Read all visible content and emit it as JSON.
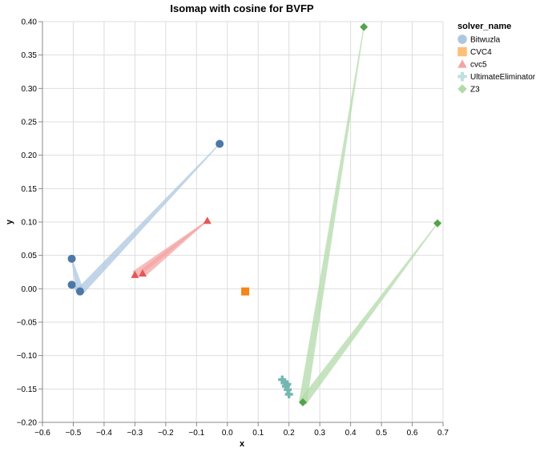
{
  "chart_data": {
    "type": "scatter",
    "title": "Isomap with cosine for BVFP",
    "xlabel": "x",
    "ylabel": "y",
    "xlim": [
      -0.6,
      0.7
    ],
    "ylim": [
      -0.2,
      0.4
    ],
    "x_ticks": [
      "−0.6",
      "−0.5",
      "−0.4",
      "−0.3",
      "−0.2",
      "−0.1",
      "0.0",
      "0.1",
      "0.2",
      "0.3",
      "0.4",
      "0.5",
      "0.6",
      "0.7"
    ],
    "y_ticks": [
      "−0.20",
      "−0.15",
      "−0.10",
      "−0.05",
      "0.00",
      "0.05",
      "0.10",
      "0.15",
      "0.20",
      "0.25",
      "0.30",
      "0.35",
      "0.40"
    ],
    "grid": true,
    "legend": {
      "title": "solver_name",
      "position": "right"
    },
    "series": [
      {
        "name": "Bitwuzla",
        "shape": "circle",
        "color": "#4c78a8",
        "line_color": "#aec7e0",
        "points": [
          [
            -0.025,
            0.217
          ],
          [
            -0.505,
            0.045
          ],
          [
            -0.505,
            0.006
          ],
          [
            -0.478,
            -0.004
          ]
        ],
        "lines": [
          [
            [
              -0.025,
              0.217
            ],
            [
              -0.478,
              -0.004
            ]
          ],
          [
            [
              -0.505,
              0.045
            ],
            [
              -0.478,
              -0.004
            ]
          ],
          [
            [
              -0.505,
              0.006
            ],
            [
              -0.478,
              -0.004
            ]
          ]
        ]
      },
      {
        "name": "CVC4",
        "shape": "square",
        "color": "#f58518",
        "line_color": "#ffbf79",
        "points": [
          [
            0.058,
            -0.004
          ]
        ],
        "lines": []
      },
      {
        "name": "cvc5",
        "shape": "triangle",
        "color": "#e45756",
        "line_color": "#f4a4a4",
        "points": [
          [
            -0.065,
            0.102
          ],
          [
            -0.3,
            0.021
          ],
          [
            -0.275,
            0.023
          ]
        ],
        "lines": [
          [
            [
              -0.065,
              0.102
            ],
            [
              -0.3,
              0.021
            ]
          ],
          [
            [
              -0.065,
              0.102
            ],
            [
              -0.275,
              0.023
            ]
          ]
        ]
      },
      {
        "name": "UltimateEliminator",
        "shape": "cross",
        "color": "#72b7b2",
        "line_color": "#bfe0dd",
        "points": [
          [
            0.178,
            -0.136
          ],
          [
            0.186,
            -0.141
          ],
          [
            0.19,
            -0.146
          ],
          [
            0.196,
            -0.151
          ],
          [
            0.2,
            -0.158
          ],
          [
            0.194,
            -0.143
          ]
        ],
        "lines": []
      },
      {
        "name": "Z3",
        "shape": "diamond",
        "color": "#54a24b",
        "line_color": "#b3d9aa",
        "points": [
          [
            0.443,
            0.392
          ],
          [
            0.682,
            0.098
          ],
          [
            0.245,
            -0.17
          ]
        ],
        "lines": [
          [
            [
              0.443,
              0.392
            ],
            [
              0.245,
              -0.17
            ]
          ],
          [
            [
              0.682,
              0.098
            ],
            [
              0.245,
              -0.17
            ]
          ]
        ]
      }
    ]
  }
}
